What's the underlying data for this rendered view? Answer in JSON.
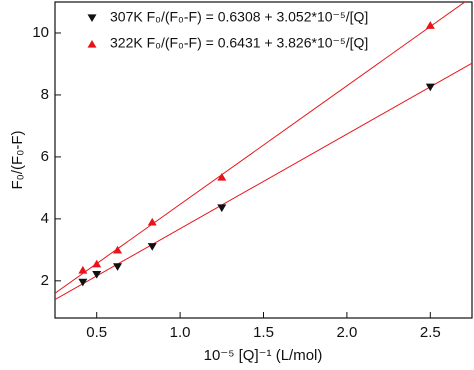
{
  "chart_data": {
    "type": "scatter",
    "xlabel": "10⁻⁵ [Q]⁻¹ (L/mol)",
    "ylabel": "F₀/(F₀-F)",
    "xlim": [
      0.25,
      2.75
    ],
    "ylim": [
      0.8,
      11
    ],
    "xticks": [
      0.5,
      {
        "value": 1,
        "label": "1.0"
      },
      1.5,
      {
        "value": 2,
        "label": "2.0"
      },
      2.5
    ],
    "yticks": [
      2,
      4,
      6,
      8,
      10
    ],
    "series": [
      {
        "name": "307K F₀/(F₀-F) = 0.6308 + 3.052*10⁻⁵/[Q]",
        "color": "#111111",
        "marker": "triangle-down",
        "x": [
          0.417,
          0.5,
          0.625,
          0.833,
          1.25,
          2.5
        ],
        "values": [
          1.95,
          2.2,
          2.45,
          3.1,
          4.35,
          8.25
        ]
      },
      {
        "name": "322K F₀/(F₀-F) = 0.6431 + 3.826*10⁻⁵/[Q]",
        "color": "#e8141a",
        "marker": "triangle-up",
        "x": [
          0.417,
          0.5,
          0.625,
          0.833,
          1.25,
          2.5
        ],
        "values": [
          2.35,
          2.55,
          3.0,
          3.9,
          5.35,
          10.25
        ]
      }
    ],
    "fit_lines": [
      {
        "color": "#e8141a",
        "x": [
          0.25,
          2.75
        ],
        "values": [
          1.394,
          9.024
        ]
      },
      {
        "color": "#e8141a",
        "x": [
          0.25,
          2.75
        ],
        "values": [
          1.6,
          11.165
        ]
      }
    ]
  }
}
